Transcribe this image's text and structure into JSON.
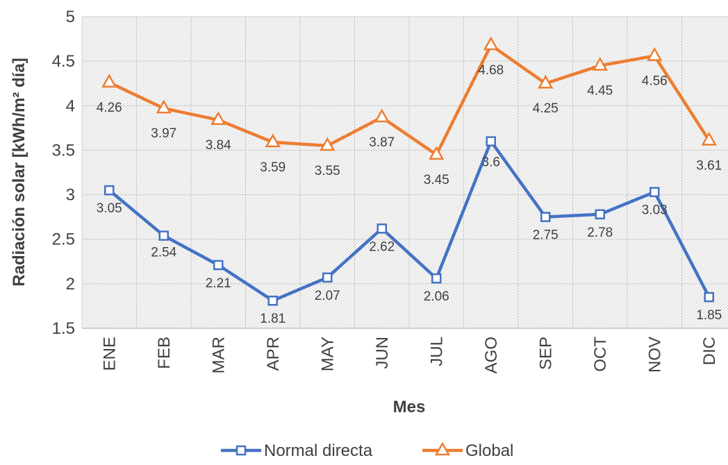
{
  "chart_data": {
    "type": "line",
    "categories": [
      "ENE",
      "FEB",
      "MAR",
      "APR",
      "MAY",
      "JUN",
      "JUL",
      "AGO",
      "SEP",
      "OCT",
      "NOV",
      "DIC"
    ],
    "series": [
      {
        "name": "Normal directa",
        "color": "#4472C4",
        "marker": "square",
        "values": [
          3.05,
          2.54,
          2.21,
          1.81,
          2.07,
          2.62,
          2.06,
          3.6,
          2.75,
          2.78,
          3.03,
          1.85
        ],
        "labels": [
          "3.05",
          "2.54",
          "2.21",
          "1.81",
          "2.07",
          "2.62",
          "2.06",
          "3.6",
          "2.75",
          "2.78",
          "3.03",
          "1.85"
        ]
      },
      {
        "name": "Global",
        "color": "#ED7D31",
        "marker": "triangle",
        "values": [
          4.26,
          3.97,
          3.84,
          3.59,
          3.55,
          3.87,
          3.45,
          4.68,
          4.25,
          4.45,
          4.56,
          3.61
        ],
        "labels": [
          "4.26",
          "3.97",
          "3.84",
          "3.59",
          "3.55",
          "3.87",
          "3.45",
          "4.68",
          "4.25",
          "4.45",
          "4.56",
          "3.61"
        ]
      }
    ],
    "xlabel": "Mes",
    "ylabel": "Radiación solar [kWh/m² día]",
    "ylim": [
      1.5,
      5
    ],
    "yticks": [
      "1.5",
      "2",
      "2.5",
      "3",
      "3.5",
      "4",
      "4.5",
      "5"
    ],
    "grid": true,
    "legend_position": "bottom"
  }
}
